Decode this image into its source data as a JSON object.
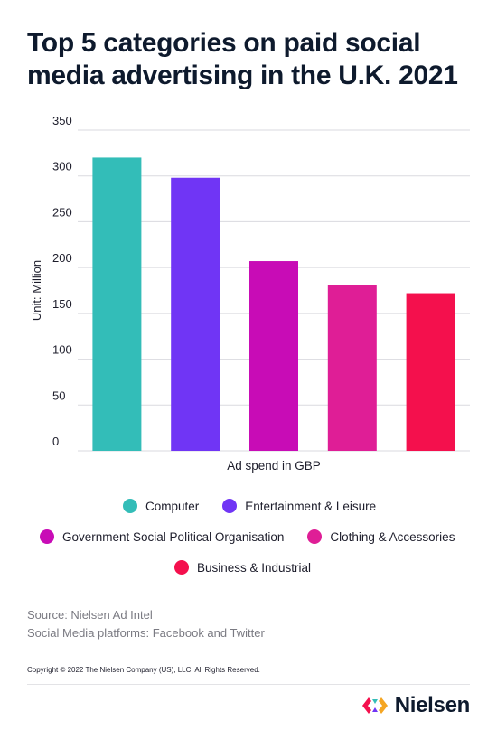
{
  "title": "Top 5 categories on paid social media advertising in the U.K. 2021",
  "chart_data": {
    "type": "bar",
    "categories": [
      "Computer",
      "Entertainment & Leisure",
      "Government Social Political Organisation",
      "Clothing & Accessories",
      "Business & Industrial"
    ],
    "values": [
      320,
      298,
      207,
      181,
      172
    ],
    "colors": [
      "#33bdb8",
      "#7035f5",
      "#c80cb6",
      "#df1e96",
      "#f4104d"
    ],
    "xlabel": "Ad spend in GBP",
    "ylabel": "Unit: Million",
    "ylim": [
      0,
      350
    ],
    "yticks": [
      "0",
      "50",
      "100",
      "150",
      "200",
      "250",
      "300",
      "350"
    ],
    "grid": true,
    "legend_position": "bottom"
  },
  "source": {
    "line1": "Source: Nielsen Ad Intel",
    "line2": "Social Media platforms: Facebook and Twitter"
  },
  "copyright": "Copyright © 2022 The Nielsen Company (US), LLC. All Rights Reserved.",
  "brand": {
    "name": "Nielsen",
    "colors": [
      "#f4104d",
      "#33bdb8",
      "#7035f5",
      "#f5a623"
    ]
  }
}
